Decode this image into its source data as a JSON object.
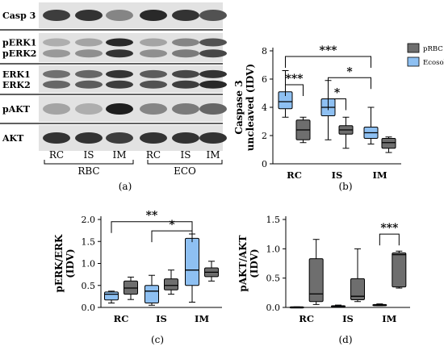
{
  "colors": {
    "light": "#8ec0f2",
    "dark": "#6e6e6e",
    "median": "#000000"
  },
  "panel_a": {
    "label": "(a)",
    "rows": [
      {
        "labels": [
          "Casp 3"
        ],
        "bands": [
          [
            0.8,
            0.85,
            0.45,
            0.9,
            0.85,
            0.7
          ]
        ]
      },
      {
        "labels": [
          "pERK1",
          "pERK2"
        ],
        "bands": [
          [
            0.25,
            0.3,
            0.9,
            0.3,
            0.45,
            0.7
          ],
          [
            0.35,
            0.4,
            0.85,
            0.4,
            0.5,
            0.75
          ]
        ]
      },
      {
        "labels": [
          "ERK1",
          "ERK2"
        ],
        "bands": [
          [
            0.55,
            0.6,
            0.85,
            0.65,
            0.75,
            0.85
          ],
          [
            0.6,
            0.65,
            0.8,
            0.7,
            0.8,
            0.9
          ]
        ]
      },
      {
        "labels": [
          "pAKT"
        ],
        "bands": [
          [
            0.3,
            0.25,
            0.95,
            0.45,
            0.5,
            0.6
          ]
        ]
      },
      {
        "labels": [
          "AKT"
        ],
        "bands": [
          [
            0.85,
            0.85,
            0.8,
            0.85,
            0.85,
            0.85
          ]
        ]
      }
    ],
    "lanes": [
      "RC",
      "IS",
      "IM",
      "RC",
      "IS",
      "IM"
    ],
    "groups": [
      "RBC",
      "ECO"
    ]
  },
  "chart_data": [
    {
      "panel": "(b)",
      "type": "box",
      "ylabel": "Caspase 3 uncleaved (IDV)",
      "categories": [
        "RC",
        "IS",
        "IM"
      ],
      "ylim": [
        0,
        8
      ],
      "yticks": [
        0,
        2,
        4,
        6,
        8
      ],
      "legend": [
        "pRBC",
        "Ecosol"
      ],
      "legend_position": "top-right",
      "series": [
        {
          "name": "Ecosol",
          "color": "light",
          "boxes": [
            {
              "min": 3.3,
              "q1": 3.9,
              "median": 4.4,
              "q3": 5.1,
              "max": 6.6
            },
            {
              "min": 1.7,
              "q1": 3.4,
              "median": 4.0,
              "q3": 4.6,
              "max": 5.9
            },
            {
              "min": 1.4,
              "q1": 1.8,
              "median": 2.2,
              "q3": 2.6,
              "max": 4.0
            }
          ]
        },
        {
          "name": "pRBC",
          "color": "dark",
          "boxes": [
            {
              "min": 1.5,
              "q1": 1.7,
              "median": 2.4,
              "q3": 3.1,
              "max": 3.3
            },
            {
              "min": 1.1,
              "q1": 2.1,
              "median": 2.4,
              "q3": 2.7,
              "max": 3.3
            },
            {
              "min": 0.8,
              "q1": 1.1,
              "median": 1.5,
              "q3": 1.8,
              "max": 1.9
            }
          ]
        }
      ],
      "brackets": [
        {
          "from": [
            0,
            0
          ],
          "to": [
            0,
            1
          ],
          "y": 5.6,
          "label": "***"
        },
        {
          "from": [
            1,
            0
          ],
          "to": [
            1,
            1
          ],
          "y": 4.6,
          "label": "*"
        },
        {
          "from": [
            0,
            0
          ],
          "to": [
            2,
            0
          ],
          "y": 7.6,
          "label": "***"
        },
        {
          "from": [
            1,
            0
          ],
          "to": [
            2,
            0
          ],
          "y": 6.1,
          "label": "*"
        }
      ]
    },
    {
      "panel": "(c)",
      "type": "box",
      "ylabel": "pERK/ERK (IDV)",
      "categories": [
        "RC",
        "IS",
        "IM"
      ],
      "ylim": [
        0,
        2.0
      ],
      "yticks": [
        0.0,
        0.5,
        1.0,
        1.5,
        2.0
      ],
      "series": [
        {
          "name": "",
          "color": "light",
          "boxes": [
            {
              "min": 0.1,
              "q1": 0.17,
              "median": 0.3,
              "q3": 0.35,
              "max": 0.37
            },
            {
              "min": 0.05,
              "q1": 0.1,
              "median": 0.37,
              "q3": 0.5,
              "max": 0.73
            },
            {
              "min": 0.12,
              "q1": 0.5,
              "median": 0.85,
              "q3": 1.57,
              "max": 1.67
            }
          ]
        },
        {
          "name": "",
          "color": "dark",
          "boxes": [
            {
              "min": 0.18,
              "q1": 0.3,
              "median": 0.44,
              "q3": 0.6,
              "max": 0.69
            },
            {
              "min": 0.3,
              "q1": 0.4,
              "median": 0.5,
              "q3": 0.65,
              "max": 0.85
            },
            {
              "min": 0.6,
              "q1": 0.7,
              "median": 0.8,
              "q3": 0.9,
              "max": 1.05
            }
          ]
        }
      ],
      "brackets": [
        {
          "from": [
            0,
            0
          ],
          "to": [
            2,
            0
          ],
          "y": 1.95,
          "label": "**"
        },
        {
          "from": [
            1,
            0
          ],
          "to": [
            2,
            0
          ],
          "y": 1.74,
          "label": "*"
        }
      ]
    },
    {
      "panel": "(d)",
      "type": "box",
      "ylabel": "pAKT/AKT (IDV)",
      "categories": [
        "RC",
        "IS",
        "IM"
      ],
      "ylim": [
        0,
        1.5
      ],
      "yticks": [
        0.0,
        0.5,
        1.0,
        1.5
      ],
      "series": [
        {
          "name": "",
          "color": "light",
          "boxes": [
            {
              "min": 0.0,
              "q1": 0.0,
              "median": 0.005,
              "q3": 0.01,
              "max": 0.01
            },
            {
              "min": 0.01,
              "q1": 0.02,
              "median": 0.025,
              "q3": 0.03,
              "max": 0.04
            },
            {
              "min": 0.03,
              "q1": 0.035,
              "median": 0.04,
              "q3": 0.05,
              "max": 0.06
            }
          ]
        },
        {
          "name": "",
          "color": "dark",
          "boxes": [
            {
              "min": 0.05,
              "q1": 0.1,
              "median": 0.23,
              "q3": 0.83,
              "max": 1.16
            },
            {
              "min": 0.1,
              "q1": 0.13,
              "median": 0.19,
              "q3": 0.49,
              "max": 1.0
            },
            {
              "min": 0.33,
              "q1": 0.35,
              "median": 0.9,
              "q3": 0.93,
              "max": 0.96
            }
          ]
        }
      ],
      "brackets": [
        {
          "from": [
            2,
            0
          ],
          "to": [
            2,
            1
          ],
          "y": 1.25,
          "label": "***"
        }
      ]
    }
  ],
  "panel_labels": {
    "c": "(c)",
    "d": "(d)"
  }
}
